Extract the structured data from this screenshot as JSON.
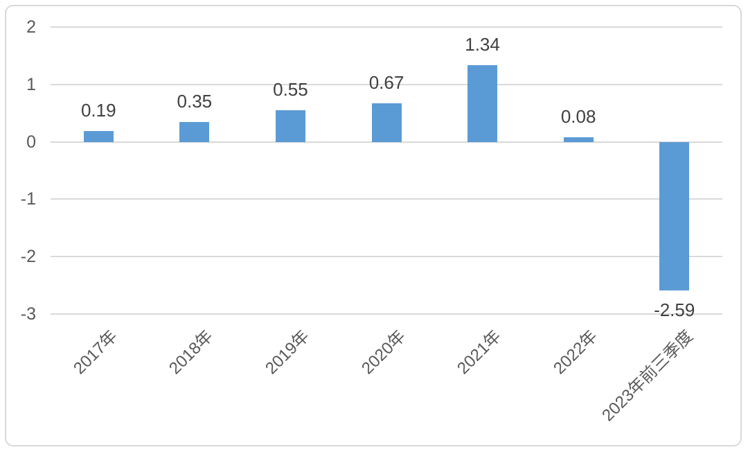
{
  "chart_data": {
    "type": "bar",
    "title": "",
    "xlabel": "",
    "ylabel": "",
    "categories": [
      "2017年",
      "2018年",
      "2019年",
      "2020年",
      "2021年",
      "2022年",
      "2023年前三季度"
    ],
    "values": [
      0.19,
      0.35,
      0.55,
      0.67,
      1.34,
      0.08,
      -2.59
    ],
    "data_labels": [
      "0.19",
      "0.35",
      "0.55",
      "0.67",
      "1.34",
      "0.08",
      "-2.59"
    ],
    "yticks": [
      2,
      1,
      0,
      -1,
      -2,
      -3
    ],
    "ylim": [
      -3,
      2
    ],
    "grid": true,
    "legend": "none",
    "bar_color": "#5B9BD5",
    "grid_color": "#D9D9D9",
    "frame_color": "#D9D9D9",
    "axis_text_color": "#595959",
    "label_text_color": "#404040",
    "background_color": "#FFFFFF"
  }
}
